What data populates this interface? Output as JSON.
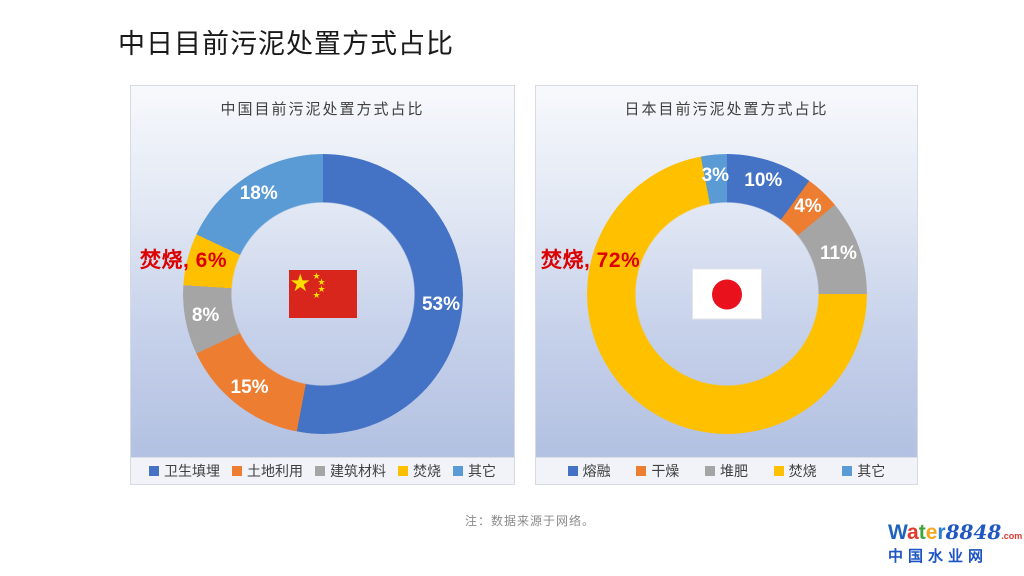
{
  "page": {
    "title": "中日目前污泥处置方式占比",
    "note": "注：数据来源于网络。"
  },
  "chart_data": [
    {
      "type": "pie",
      "variant": "donut",
      "title": "中国目前污泥处置方式占比",
      "categories": [
        "卫生填埋",
        "土地利用",
        "建筑材料",
        "焚烧",
        "其它"
      ],
      "values": [
        53,
        15,
        8,
        6,
        18
      ],
      "unit": "%",
      "colors": [
        "#4472C4",
        "#ED7D31",
        "#A5A5A5",
        "#FFC000",
        "#5B9BD5"
      ],
      "data_labels": [
        "53%",
        "15%",
        "8%",
        "焚烧, 6%",
        "18%"
      ],
      "highlight": {
        "index": 3,
        "label": "焚烧, 6%",
        "color": "#dd0000"
      },
      "center_icon": "china-flag",
      "legend_position": "bottom",
      "label_color": "#ffffff"
    },
    {
      "type": "pie",
      "variant": "donut",
      "title": "日本目前污泥处置方式占比",
      "categories": [
        "熔融",
        "干燥",
        "堆肥",
        "焚烧",
        "其它"
      ],
      "values": [
        10,
        4,
        11,
        72,
        3
      ],
      "unit": "%",
      "colors": [
        "#4472C4",
        "#ED7D31",
        "#A5A5A5",
        "#FFC000",
        "#5B9BD5"
      ],
      "data_labels": [
        "10%",
        "4%",
        "11%",
        "焚烧, 72%",
        "3%"
      ],
      "highlight": {
        "index": 3,
        "label": "焚烧, 72%",
        "color": "#dd0000"
      },
      "center_icon": "japan-flag",
      "legend_position": "bottom",
      "label_color": "#ffffff"
    }
  ],
  "footer": {
    "logo": {
      "word_letters": [
        {
          "ch": "W",
          "color": "#1f63be"
        },
        {
          "ch": "a",
          "color": "#e23a2e"
        },
        {
          "ch": "t",
          "color": "#3fa43a"
        },
        {
          "ch": "e",
          "color": "#f3a81e"
        },
        {
          "ch": "r",
          "color": "#2d7fd6"
        }
      ],
      "number": "8848",
      "number_color": "#2057c0",
      "tld": ".com",
      "tld_color": "#e23a2e",
      "cn_name": "中国水业网",
      "cn_color": "#1d54c6"
    }
  }
}
